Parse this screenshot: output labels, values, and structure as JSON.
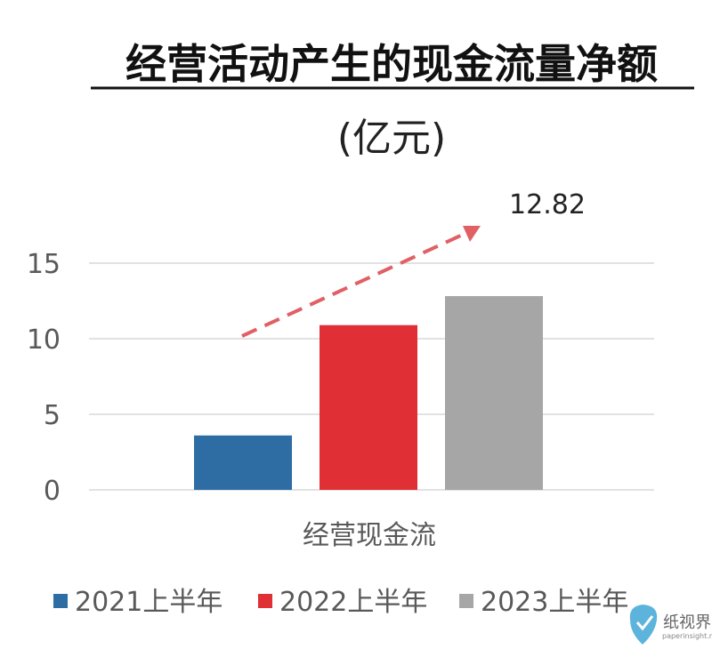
{
  "chart_data": {
    "type": "bar",
    "title": "经营活动产生的现金流量净额",
    "subtitle": "(亿元)",
    "categories": [
      "经营现金流"
    ],
    "series": [
      {
        "name": "2021上半年",
        "values": [
          3.6
        ],
        "color": "#2e6da4"
      },
      {
        "name": "2022上半年",
        "values": [
          10.9
        ],
        "color": "#e03036"
      },
      {
        "name": "2023上半年",
        "values": [
          12.82
        ],
        "color": "#a6a6a6"
      }
    ],
    "ylim": [
      0,
      15
    ],
    "yticks": [
      "0",
      "5",
      "10",
      "15"
    ],
    "ytick_values": [
      0,
      5,
      10,
      15
    ],
    "grid": true,
    "legend_position": "bottom",
    "annotation": {
      "text": "12.82",
      "arrow_color": "#e06065",
      "arrow_style": "dashed"
    }
  },
  "watermark": {
    "text": "纸视界",
    "sub": "paperinsight.net"
  }
}
